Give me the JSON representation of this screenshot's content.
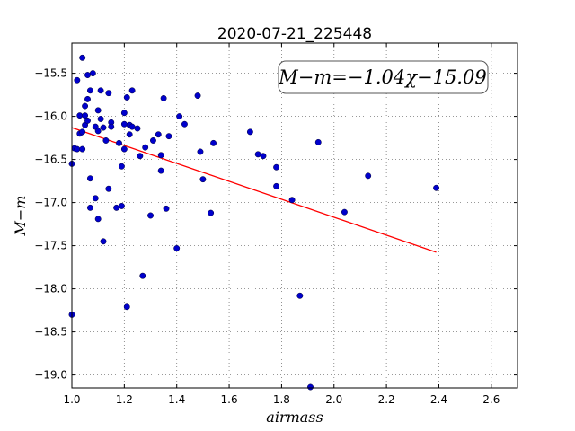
{
  "chart_data": {
    "type": "scatter",
    "title": "2020-07-21_225448",
    "xlabel": "airmass",
    "ylabel": "M−m",
    "xlim": [
      1.0,
      2.7
    ],
    "ylim": [
      -19.15,
      -15.15
    ],
    "y_inverted": true,
    "grid": true,
    "x_ticks": [
      1.0,
      1.2,
      1.4,
      1.6,
      1.8,
      2.0,
      2.2,
      2.4,
      2.6
    ],
    "x_tick_labels": [
      "1.0",
      "1.2",
      "1.4",
      "1.6",
      "1.8",
      "2.0",
      "2.2",
      "2.4",
      "2.6"
    ],
    "y_ticks": [
      -15.5,
      -16.0,
      -16.5,
      -17.0,
      -17.5,
      -18.0,
      -18.5,
      -19.0
    ],
    "y_tick_labels": [
      "−15.5",
      "−16.0",
      "−16.5",
      "−17.0",
      "−17.5",
      "−18.0",
      "−18.5",
      "−19.0"
    ],
    "annotation": "M−m=−1.04χ−15.09",
    "point_color": "#0000cc",
    "fit_color": "#ff0000",
    "fit": {
      "slope": -1.04,
      "intercept": -15.09,
      "x_range": [
        1.0,
        2.39
      ]
    },
    "x": [
      1.0,
      1.0,
      1.01,
      1.02,
      1.02,
      1.03,
      1.03,
      1.04,
      1.04,
      1.04,
      1.05,
      1.05,
      1.05,
      1.06,
      1.06,
      1.06,
      1.07,
      1.07,
      1.07,
      1.08,
      1.09,
      1.09,
      1.1,
      1.1,
      1.1,
      1.11,
      1.11,
      1.12,
      1.12,
      1.13,
      1.14,
      1.14,
      1.15,
      1.15,
      1.17,
      1.18,
      1.19,
      1.19,
      1.2,
      1.2,
      1.2,
      1.21,
      1.21,
      1.22,
      1.22,
      1.23,
      1.23,
      1.25,
      1.26,
      1.27,
      1.28,
      1.3,
      1.31,
      1.33,
      1.34,
      1.34,
      1.35,
      1.36,
      1.37,
      1.4,
      1.41,
      1.43,
      1.48,
      1.49,
      1.5,
      1.53,
      1.54,
      1.68,
      1.71,
      1.73,
      1.78,
      1.78,
      1.84,
      1.87,
      1.91,
      1.94,
      2.04,
      2.13,
      2.39
    ],
    "y": [
      -16.55,
      -18.3,
      -16.37,
      -15.58,
      -16.38,
      -15.99,
      -16.2,
      -15.32,
      -16.18,
      -16.38,
      -15.88,
      -15.99,
      -16.1,
      -15.52,
      -15.8,
      -16.05,
      -15.7,
      -16.72,
      -17.06,
      -15.5,
      -16.95,
      -16.12,
      -16.17,
      -15.93,
      -17.19,
      -16.03,
      -15.7,
      -16.13,
      -17.45,
      -16.28,
      -15.73,
      -16.84,
      -16.07,
      -16.12,
      -17.06,
      -16.31,
      -16.58,
      -17.04,
      -16.38,
      -15.96,
      -16.09,
      -15.78,
      -18.21,
      -16.1,
      -16.21,
      -15.7,
      -16.12,
      -16.14,
      -16.46,
      -17.85,
      -16.36,
      -17.15,
      -16.28,
      -16.21,
      -16.63,
      -16.45,
      -15.79,
      -17.07,
      -16.23,
      -17.53,
      -16.0,
      -16.09,
      -15.76,
      -16.41,
      -16.73,
      -17.12,
      -16.31,
      -16.18,
      -16.44,
      -16.46,
      -16.81,
      -16.59,
      -16.97,
      -18.08,
      -19.14,
      -16.3,
      -17.11,
      -16.69,
      -16.83
    ]
  }
}
